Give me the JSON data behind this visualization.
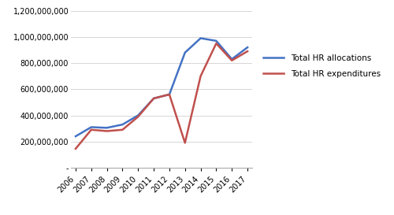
{
  "years": [
    2006,
    2007,
    2008,
    2009,
    2010,
    2011,
    2012,
    2013,
    2014,
    2015,
    2016,
    2017
  ],
  "allocations": [
    240000000,
    310000000,
    305000000,
    330000000,
    400000000,
    530000000,
    560000000,
    880000000,
    990000000,
    970000000,
    830000000,
    920000000
  ],
  "expenditures": [
    145000000,
    290000000,
    280000000,
    290000000,
    390000000,
    530000000,
    560000000,
    190000000,
    700000000,
    950000000,
    820000000,
    890000000
  ],
  "alloc_color": "#4472C4",
  "expend_color": "#C0504D",
  "alloc_label": "Total HR allocations",
  "expend_label": "Total HR expenditures",
  "ylim": [
    0,
    1200000000
  ],
  "yticks": [
    0,
    200000000,
    400000000,
    600000000,
    800000000,
    1000000000,
    1200000000
  ],
  "bg_color": "#ffffff",
  "grid_color": "#d0d0d0",
  "line_width": 1.8
}
